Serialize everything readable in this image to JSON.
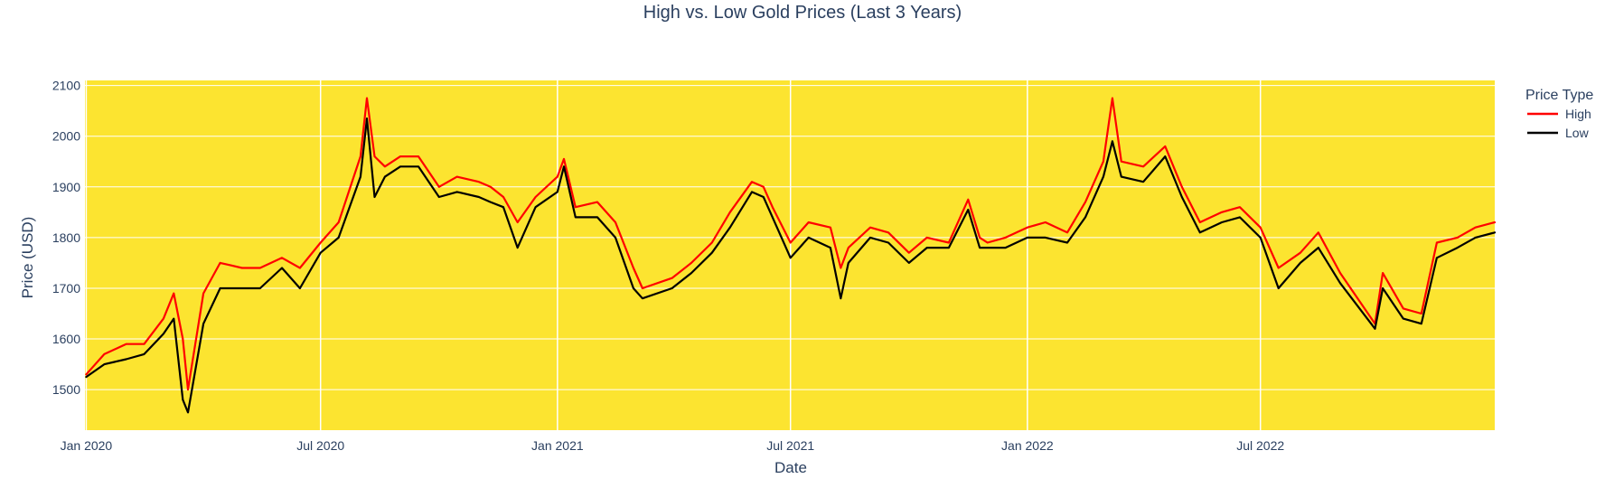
{
  "chart_data": {
    "type": "line",
    "title": "High vs. Low Gold Prices (Last 3 Years)",
    "xlabel": "Date",
    "ylabel": "Price (USD)",
    "x_range": [
      "2019-12-31",
      "2022-12-30"
    ],
    "ylim": [
      1420,
      2110
    ],
    "x_ticks": [
      {
        "date": "2020-01-01",
        "label": "Jan 2020"
      },
      {
        "date": "2020-07-01",
        "label": "Jul 2020"
      },
      {
        "date": "2021-01-01",
        "label": "Jan 2021"
      },
      {
        "date": "2021-07-01",
        "label": "Jul 2021"
      },
      {
        "date": "2022-01-01",
        "label": "Jan 2022"
      },
      {
        "date": "2022-07-01",
        "label": "Jul 2022"
      }
    ],
    "y_ticks": [
      1500,
      1600,
      1700,
      1800,
      1900,
      2000,
      2100
    ],
    "grid": true,
    "legend": {
      "title": "Price Type",
      "position": "top-right"
    },
    "colors": {
      "plot_background": "#fce430",
      "grid": "#ffffff",
      "text": "#2a3f5f"
    },
    "series": [
      {
        "name": "High",
        "color": "#ff0000",
        "x": [
          "2020-01-01",
          "2020-01-15",
          "2020-02-01",
          "2020-02-15",
          "2020-03-01",
          "2020-03-09",
          "2020-03-16",
          "2020-03-20",
          "2020-04-01",
          "2020-04-14",
          "2020-05-01",
          "2020-05-15",
          "2020-06-01",
          "2020-06-15",
          "2020-07-01",
          "2020-07-15",
          "2020-08-01",
          "2020-08-06",
          "2020-08-12",
          "2020-08-20",
          "2020-09-01",
          "2020-09-15",
          "2020-10-01",
          "2020-10-15",
          "2020-11-01",
          "2020-11-10",
          "2020-11-20",
          "2020-12-01",
          "2020-12-15",
          "2021-01-01",
          "2021-01-06",
          "2021-01-15",
          "2021-02-01",
          "2021-02-15",
          "2021-03-01",
          "2021-03-08",
          "2021-03-31",
          "2021-04-15",
          "2021-05-01",
          "2021-05-15",
          "2021-06-01",
          "2021-06-10",
          "2021-06-17",
          "2021-07-01",
          "2021-07-15",
          "2021-08-01",
          "2021-08-09",
          "2021-08-15",
          "2021-09-01",
          "2021-09-15",
          "2021-10-01",
          "2021-10-15",
          "2021-11-01",
          "2021-11-16",
          "2021-11-25",
          "2021-12-01",
          "2021-12-15",
          "2022-01-01",
          "2022-01-15",
          "2022-02-01",
          "2022-02-15",
          "2022-03-01",
          "2022-03-08",
          "2022-03-15",
          "2022-04-01",
          "2022-04-18",
          "2022-05-01",
          "2022-05-15",
          "2022-06-01",
          "2022-06-15",
          "2022-07-01",
          "2022-07-15",
          "2022-08-01",
          "2022-08-15",
          "2022-09-01",
          "2022-09-28",
          "2022-10-04",
          "2022-10-20",
          "2022-11-03",
          "2022-11-15",
          "2022-12-01",
          "2022-12-15",
          "2022-12-30"
        ],
        "values": [
          1530,
          1570,
          1590,
          1590,
          1640,
          1690,
          1600,
          1500,
          1690,
          1750,
          1740,
          1740,
          1760,
          1740,
          1790,
          1830,
          1960,
          2075,
          1960,
          1940,
          1960,
          1960,
          1900,
          1920,
          1910,
          1900,
          1880,
          1830,
          1880,
          1920,
          1955,
          1860,
          1870,
          1830,
          1740,
          1700,
          1720,
          1750,
          1790,
          1850,
          1910,
          1900,
          1860,
          1790,
          1830,
          1820,
          1740,
          1780,
          1820,
          1810,
          1770,
          1800,
          1790,
          1875,
          1800,
          1790,
          1800,
          1820,
          1830,
          1810,
          1870,
          1950,
          2075,
          1950,
          1940,
          1980,
          1900,
          1830,
          1850,
          1860,
          1820,
          1740,
          1770,
          1810,
          1730,
          1630,
          1730,
          1660,
          1650,
          1790,
          1800,
          1820,
          1830
        ]
      },
      {
        "name": "Low",
        "color": "#000000",
        "x": [
          "2020-01-01",
          "2020-01-15",
          "2020-02-01",
          "2020-02-15",
          "2020-03-01",
          "2020-03-09",
          "2020-03-16",
          "2020-03-20",
          "2020-04-01",
          "2020-04-14",
          "2020-05-01",
          "2020-05-15",
          "2020-06-01",
          "2020-06-15",
          "2020-07-01",
          "2020-07-15",
          "2020-08-01",
          "2020-08-06",
          "2020-08-12",
          "2020-08-20",
          "2020-09-01",
          "2020-09-15",
          "2020-10-01",
          "2020-10-15",
          "2020-11-01",
          "2020-11-10",
          "2020-11-20",
          "2020-12-01",
          "2020-12-15",
          "2021-01-01",
          "2021-01-06",
          "2021-01-15",
          "2021-02-01",
          "2021-02-15",
          "2021-03-01",
          "2021-03-08",
          "2021-03-31",
          "2021-04-15",
          "2021-05-01",
          "2021-05-15",
          "2021-06-01",
          "2021-06-10",
          "2021-06-17",
          "2021-07-01",
          "2021-07-15",
          "2021-08-01",
          "2021-08-09",
          "2021-08-15",
          "2021-09-01",
          "2021-09-15",
          "2021-10-01",
          "2021-10-15",
          "2021-11-01",
          "2021-11-16",
          "2021-11-25",
          "2021-12-01",
          "2021-12-15",
          "2022-01-01",
          "2022-01-15",
          "2022-02-01",
          "2022-02-15",
          "2022-03-01",
          "2022-03-08",
          "2022-03-15",
          "2022-04-01",
          "2022-04-18",
          "2022-05-01",
          "2022-05-15",
          "2022-06-01",
          "2022-06-15",
          "2022-07-01",
          "2022-07-15",
          "2022-08-01",
          "2022-08-15",
          "2022-09-01",
          "2022-09-28",
          "2022-10-04",
          "2022-10-20",
          "2022-11-03",
          "2022-11-15",
          "2022-12-01",
          "2022-12-15",
          "2022-12-30"
        ],
        "values": [
          1525,
          1550,
          1560,
          1570,
          1610,
          1640,
          1480,
          1455,
          1630,
          1700,
          1700,
          1700,
          1740,
          1700,
          1770,
          1800,
          1920,
          2035,
          1880,
          1920,
          1940,
          1940,
          1880,
          1890,
          1880,
          1870,
          1860,
          1780,
          1860,
          1890,
          1940,
          1840,
          1840,
          1800,
          1700,
          1680,
          1700,
          1730,
          1770,
          1820,
          1890,
          1880,
          1840,
          1760,
          1800,
          1780,
          1680,
          1750,
          1800,
          1790,
          1750,
          1780,
          1780,
          1855,
          1780,
          1780,
          1780,
          1800,
          1800,
          1790,
          1840,
          1920,
          1990,
          1920,
          1910,
          1960,
          1880,
          1810,
          1830,
          1840,
          1800,
          1700,
          1750,
          1780,
          1710,
          1620,
          1700,
          1640,
          1630,
          1760,
          1780,
          1800,
          1810
        ]
      }
    ]
  }
}
